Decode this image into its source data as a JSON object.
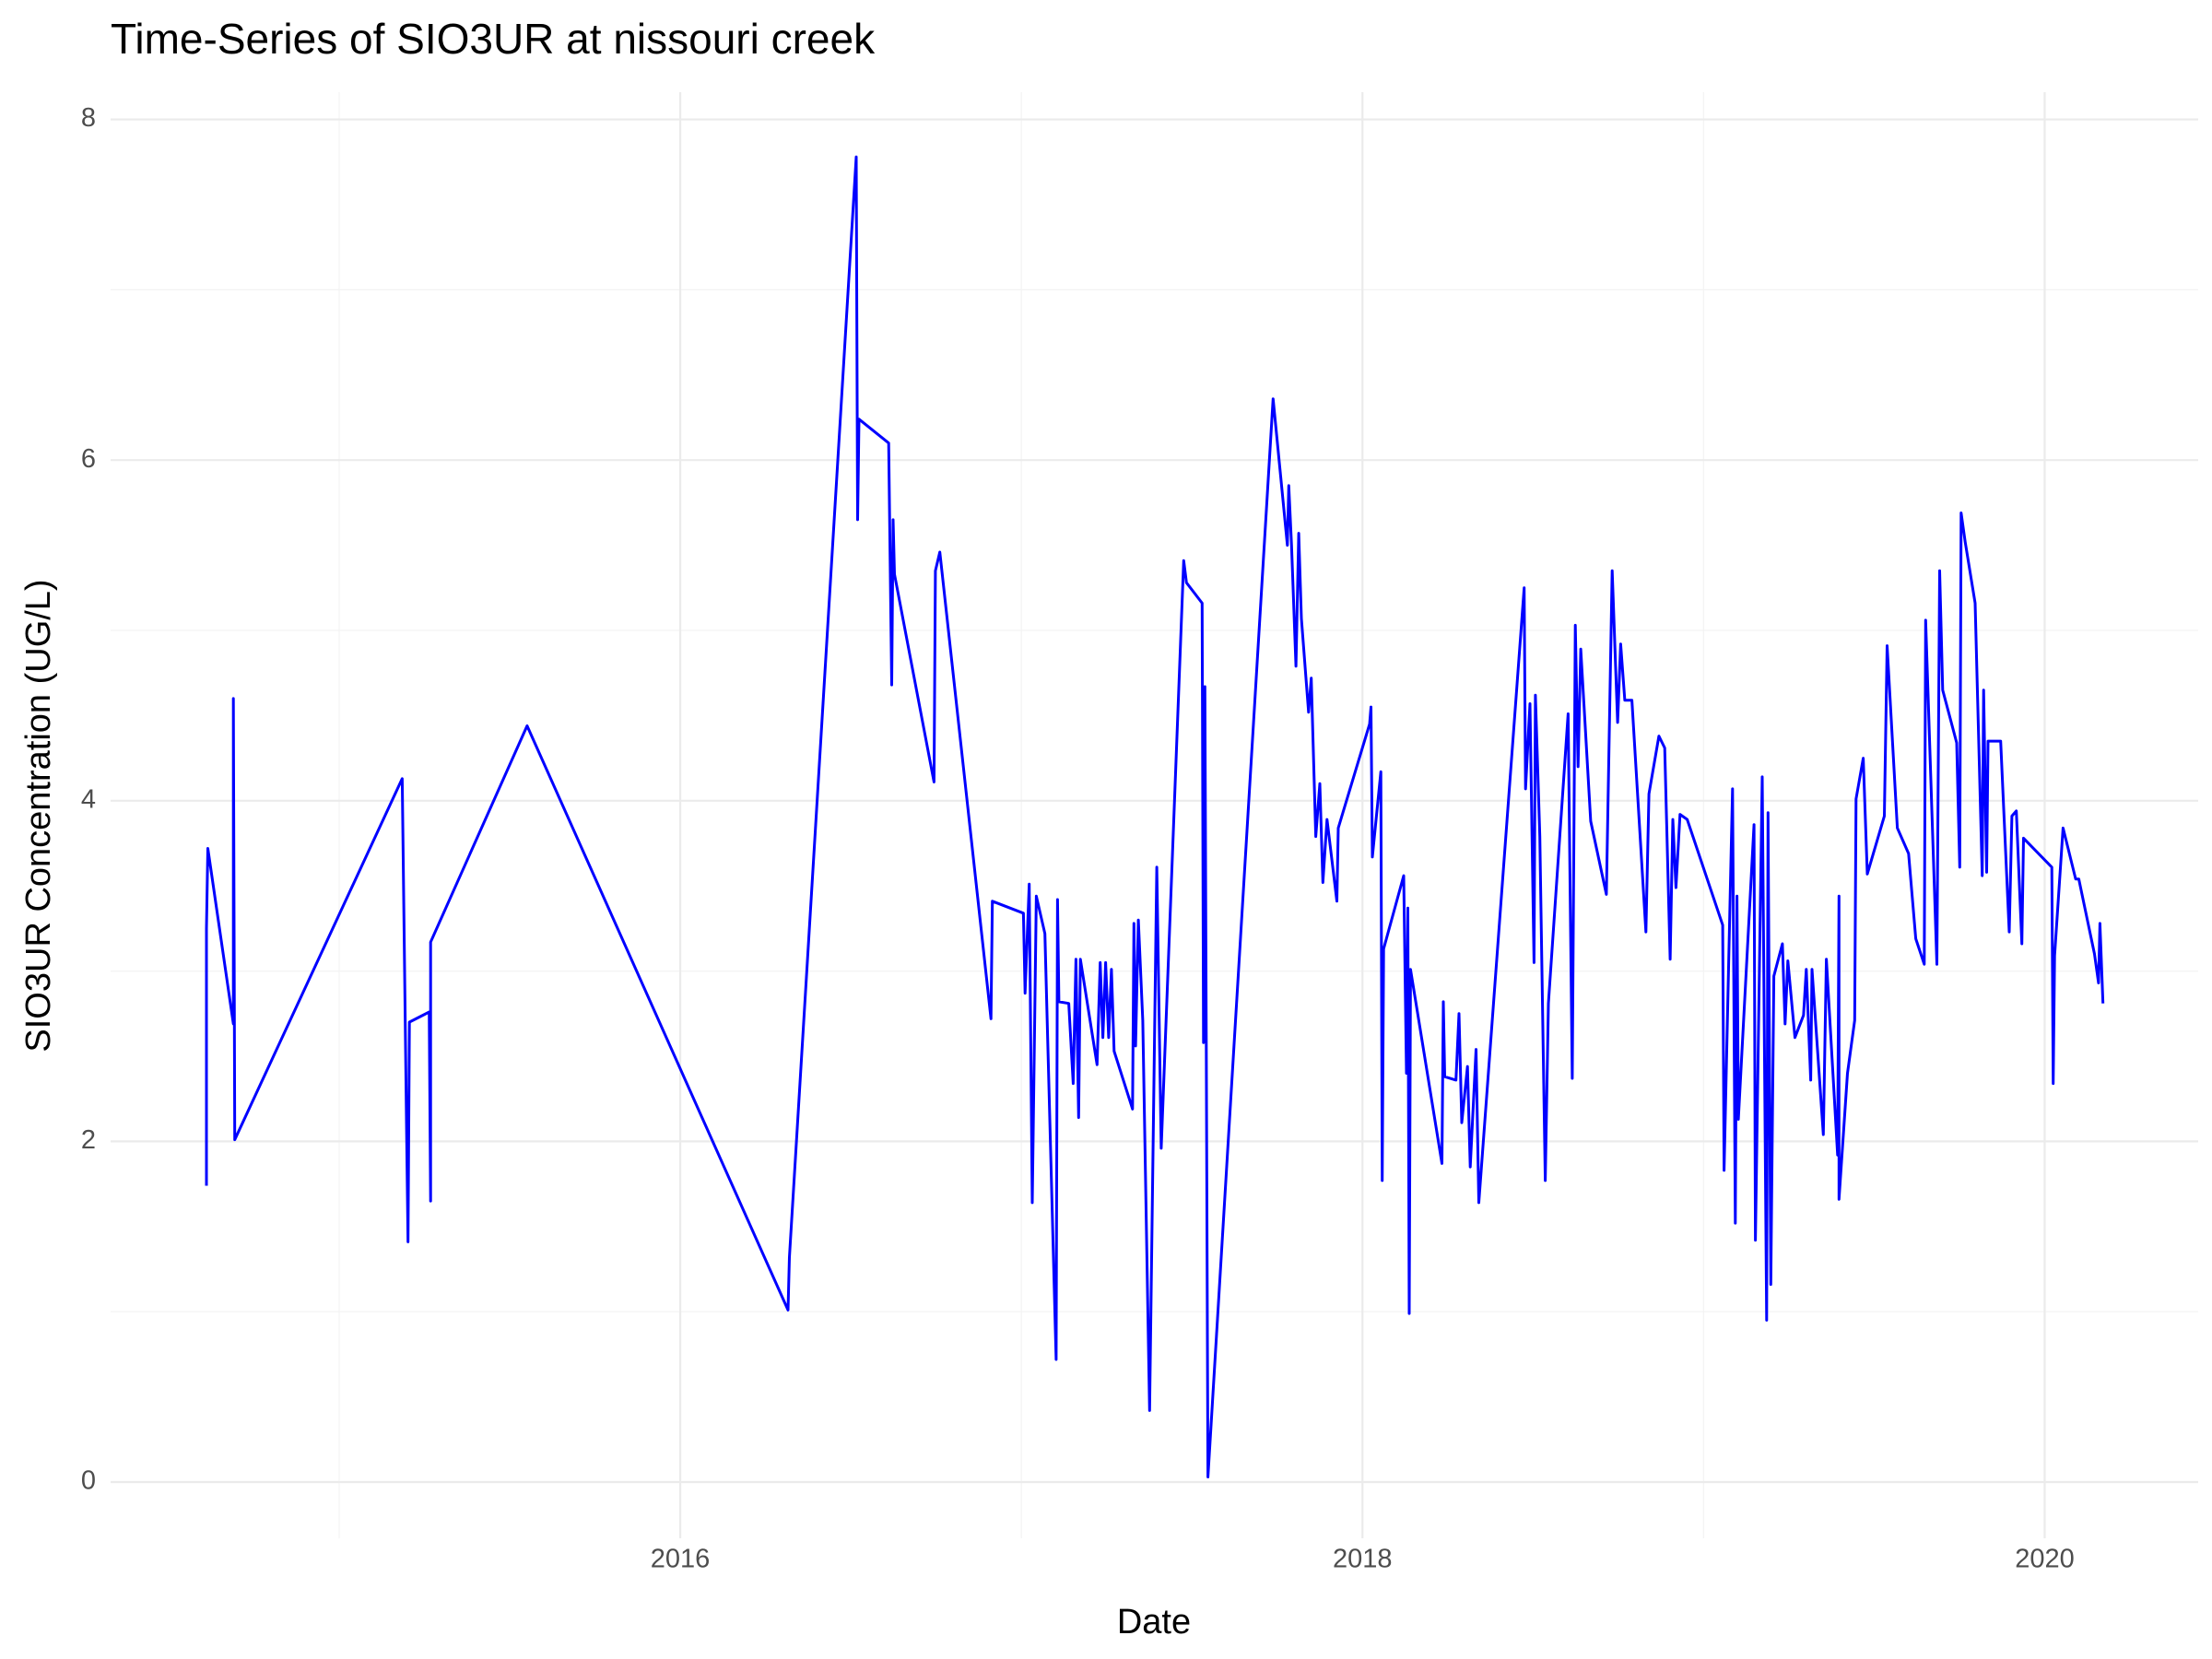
{
  "chart_data": {
    "type": "line",
    "title": "Time-Series of SIO3UR at nissouri creek",
    "x_label": "Date",
    "y_label": "SIO3UR Concentration (UG/L)",
    "color": "#0000ff",
    "grid": true,
    "xlim": [
      2014.33,
      2020.45
    ],
    "ylim": [
      -0.33,
      8.16
    ],
    "xticks": [
      2016,
      2018,
      2020
    ],
    "yticks": [
      0,
      2,
      4,
      6,
      8
    ],
    "minor_xticks": [
      2015,
      2017,
      2019
    ],
    "minor_yticks": [
      1,
      3,
      5,
      7
    ],
    "x": [
      2014.611,
      2014.611,
      2014.615,
      2014.69,
      2014.69,
      2014.694,
      2015.185,
      2015.198,
      2015.202,
      2015.206,
      2015.264,
      2015.268,
      2015.268,
      2015.551,
      2016.316,
      2016.32,
      2016.516,
      2016.52,
      2016.524,
      2016.611,
      2016.62,
      2016.624,
      2016.628,
      2016.744,
      2016.748,
      2016.761,
      2016.911,
      2016.915,
      2017.006,
      2017.011,
      2017.023,
      2017.032,
      2017.044,
      2017.069,
      2017.102,
      2017.106,
      2017.11,
      2017.139,
      2017.152,
      2017.16,
      2017.168,
      2017.173,
      2017.222,
      2017.231,
      2017.239,
      2017.247,
      2017.256,
      2017.264,
      2017.272,
      2017.326,
      2017.33,
      2017.335,
      2017.343,
      2017.356,
      2017.376,
      2017.397,
      2017.41,
      2017.476,
      2017.484,
      2017.53,
      2017.534,
      2017.538,
      2017.547,
      2017.738,
      2017.78,
      2017.784,
      2017.792,
      2017.805,
      2017.813,
      2017.821,
      2017.842,
      2017.85,
      2017.863,
      2017.875,
      2017.884,
      2017.896,
      2017.925,
      2017.929,
      2018.021,
      2018.025,
      2018.029,
      2018.054,
      2018.058,
      2018.062,
      2018.121,
      2018.129,
      2018.133,
      2018.137,
      2018.141,
      2018.233,
      2018.237,
      2018.241,
      2018.274,
      2018.283,
      2018.291,
      2018.308,
      2018.316,
      2018.333,
      2018.341,
      2018.474,
      2018.478,
      2018.491,
      2018.503,
      2018.507,
      2018.52,
      2018.536,
      2018.545,
      2018.603,
      2018.615,
      2018.624,
      2018.632,
      2018.64,
      2018.669,
      2018.715,
      2018.732,
      2018.748,
      2018.757,
      2018.769,
      2018.79,
      2018.831,
      2018.84,
      2018.869,
      2018.886,
      2018.902,
      2018.91,
      2018.919,
      2018.931,
      2018.952,
      2019.056,
      2019.06,
      2019.085,
      2019.093,
      2019.098,
      2019.102,
      2019.148,
      2019.152,
      2019.172,
      2019.185,
      2019.189,
      2019.197,
      2019.206,
      2019.231,
      2019.239,
      2019.247,
      2019.268,
      2019.293,
      2019.301,
      2019.314,
      2019.318,
      2019.351,
      2019.36,
      2019.393,
      2019.397,
      2019.397,
      2019.422,
      2019.443,
      2019.447,
      2019.468,
      2019.48,
      2019.53,
      2019.538,
      2019.568,
      2019.601,
      2019.622,
      2019.647,
      2019.651,
      2019.684,
      2019.692,
      2019.701,
      2019.742,
      2019.751,
      2019.755,
      2019.767,
      2019.796,
      2019.817,
      2019.821,
      2019.83,
      2019.834,
      2019.871,
      2019.896,
      2019.904,
      2019.917,
      2019.933,
      2019.938,
      2020.021,
      2020.025,
      2020.029,
      2020.054,
      2020.091,
      2020.1,
      2020.146,
      2020.158,
      2020.162,
      2020.171
    ],
    "values": [
      1.74,
      3.25,
      3.72,
      2.69,
      4.6,
      2.01,
      4.13,
      2.04,
      1.41,
      2.7,
      2.76,
      1.65,
      3.17,
      4.44,
      1.01,
      1.32,
      7.78,
      5.65,
      6.24,
      6.1,
      4.68,
      5.65,
      5.33,
      4.11,
      5.35,
      5.46,
      2.72,
      3.41,
      3.34,
      2.87,
      3.51,
      1.64,
      3.44,
      3.22,
      0.72,
      3.42,
      2.82,
      2.81,
      2.34,
      3.07,
      2.14,
      3.07,
      2.45,
      3.05,
      2.61,
      3.05,
      2.61,
      3.01,
      2.53,
      2.19,
      3.28,
      2.56,
      3.3,
      2.71,
      0.42,
      3.61,
      1.96,
      5.41,
      5.28,
      5.16,
      2.58,
      4.67,
      0.03,
      6.36,
      5.5,
      5.85,
      5.5,
      4.79,
      5.57,
      5.07,
      4.52,
      4.72,
      3.79,
      4.1,
      3.52,
      3.89,
      3.41,
      3.84,
      4.45,
      4.55,
      3.67,
      4.17,
      1.77,
      3.13,
      3.56,
      2.4,
      3.37,
      0.99,
      3.01,
      1.87,
      2.82,
      2.38,
      2.36,
      2.75,
      2.11,
      2.44,
      1.85,
      2.54,
      1.64,
      5.25,
      4.07,
      4.57,
      3.05,
      4.62,
      3.79,
      1.77,
      2.81,
      4.51,
      2.37,
      5.03,
      4.2,
      4.89,
      3.88,
      3.45,
      5.35,
      4.46,
      4.92,
      4.59,
      4.59,
      3.23,
      4.04,
      4.38,
      4.31,
      3.07,
      3.89,
      3.49,
      3.92,
      3.89,
      3.27,
      1.83,
      4.07,
      1.52,
      3.44,
      2.13,
      3.86,
      1.42,
      4.14,
      0.95,
      3.93,
      1.16,
      2.97,
      3.16,
      2.69,
      3.06,
      2.61,
      2.74,
      3.01,
      2.36,
      3.01,
      2.04,
      3.07,
      1.92,
      3.44,
      1.66,
      2.4,
      2.71,
      4.01,
      4.25,
      3.57,
      3.91,
      4.91,
      3.84,
      3.69,
      3.19,
      3.04,
      5.06,
      3.04,
      5.35,
      4.65,
      4.34,
      3.61,
      5.69,
      5.52,
      5.16,
      3.56,
      4.65,
      3.58,
      4.35,
      4.35,
      3.23,
      3.91,
      3.94,
      3.16,
      3.78,
      3.61,
      2.34,
      3.09,
      3.84,
      3.54,
      3.54,
      3.1,
      2.93,
      3.28,
      2.81
    ]
  }
}
